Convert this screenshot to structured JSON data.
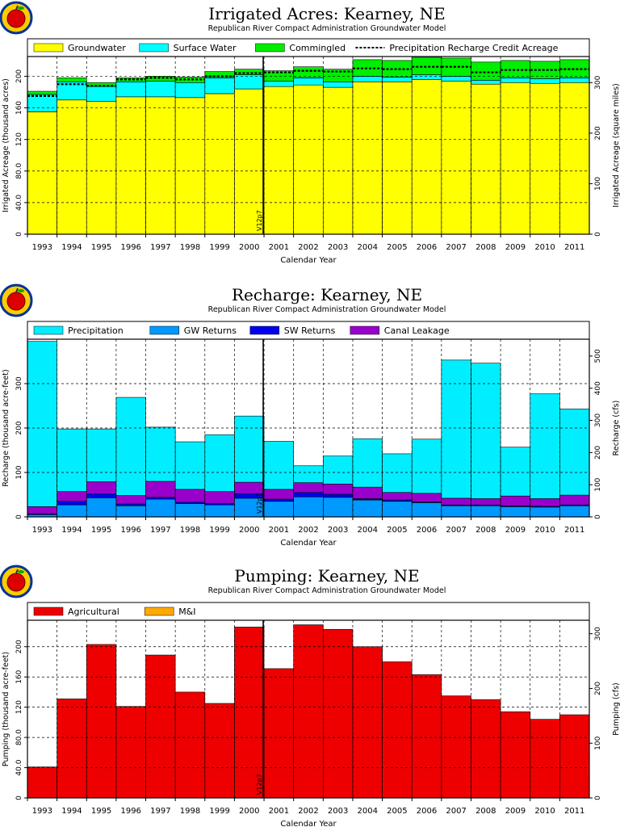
{
  "chart_data": [
    {
      "type": "area",
      "title": "Irrigated Acres: Kearney, NE",
      "subtitle": "Republican River Compact Administration Groundwater Model",
      "xlabel": "Calendar Year",
      "ylabel": "Irrigated Acreage (thousand acres)",
      "ylabel_right": "Irrigated Acreage (square miles)",
      "ylim": [
        0,
        225
      ],
      "yticks": [
        "0",
        "40.0",
        "80.0",
        "120",
        "160",
        "200"
      ],
      "ylim_right": [
        0,
        351.6
      ],
      "yticks_right": [
        "0",
        "100",
        "200",
        "300"
      ],
      "categories": [
        "1993",
        "1994",
        "1995",
        "1996",
        "1997",
        "1998",
        "1999",
        "2000",
        "2001",
        "2002",
        "2003",
        "2004",
        "2005",
        "2006",
        "2007",
        "2008",
        "2009",
        "2010",
        "2011"
      ],
      "marker_label": "V12p7",
      "series": [
        {
          "name": "Groundwater",
          "color": "#ffff00",
          "values": [
            155,
            170,
            168,
            174,
            174,
            173,
            178,
            184,
            187,
            189,
            186,
            193,
            193,
            196,
            194,
            190,
            192,
            191,
            192
          ]
        },
        {
          "name": "Surface Water",
          "color": "#00ffff",
          "values": [
            22,
            23,
            19,
            19,
            20,
            19,
            20,
            18,
            7,
            9,
            7,
            7,
            6,
            6,
            6,
            5,
            6,
            6,
            6
          ]
        },
        {
          "name": "Commingled",
          "color": "#00ee00",
          "values": [
            4,
            5,
            5,
            5,
            6,
            7,
            8,
            7,
            13,
            14,
            16,
            21,
            21,
            22,
            23,
            23,
            22,
            22,
            23
          ]
        }
      ],
      "line": {
        "name": "Precipitation Recharge Credit Acreage",
        "values": [
          175,
          190,
          188,
          196,
          198,
          196,
          200,
          204,
          205,
          207,
          206,
          210,
          209,
          212,
          212,
          205,
          208,
          208,
          209
        ]
      }
    },
    {
      "type": "area",
      "title": "Recharge: Kearney, NE",
      "subtitle": "Republican River Compact Administration Groundwater Model",
      "xlabel": "Calendar Year",
      "ylabel": "Recharge (thousand acre-feet)",
      "ylabel_right": "Recharge (cfs)",
      "ylim": [
        0,
        400
      ],
      "yticks": [
        "0",
        "100",
        "200",
        "300"
      ],
      "ylim_right": [
        0,
        552.5
      ],
      "yticks_right": [
        "0",
        "100",
        "200",
        "300",
        "400",
        "500"
      ],
      "categories": [
        "1993",
        "1994",
        "1995",
        "1996",
        "1997",
        "1998",
        "1999",
        "2000",
        "2001",
        "2002",
        "2003",
        "2004",
        "2005",
        "2006",
        "2007",
        "2008",
        "2009",
        "2010",
        "2011"
      ],
      "marker_label": "V12p7",
      "series": [
        {
          "name": "GW Returns",
          "color": "#0099ff",
          "values": [
            5,
            27,
            43,
            25,
            40,
            30,
            27,
            42,
            35,
            45,
            44,
            38,
            35,
            32,
            25,
            25,
            23,
            22,
            25
          ]
        },
        {
          "name": "SW Returns",
          "color": "#0000ee",
          "values": [
            2,
            8,
            9,
            4,
            4,
            3,
            3,
            10,
            5,
            10,
            7,
            3,
            3,
            2,
            2,
            2,
            2,
            2,
            2
          ]
        },
        {
          "name": "Canal Leakage",
          "color": "#9900cc",
          "values": [
            16,
            22,
            27,
            19,
            36,
            29,
            27,
            26,
            22,
            22,
            23,
            26,
            17,
            19,
            15,
            14,
            22,
            17,
            22
          ]
        },
        {
          "name": "Precipitation",
          "color": "#00eeff",
          "values": [
            372,
            141,
            119,
            221,
            122,
            107,
            128,
            149,
            108,
            38,
            63,
            109,
            87,
            122,
            311,
            305,
            110,
            236,
            194
          ]
        }
      ]
    },
    {
      "type": "bar",
      "title": "Pumping: Kearney, NE",
      "subtitle": "Republican River Compact Administration Groundwater Model",
      "xlabel": "Calendar Year",
      "ylabel": "Pumping (thousand acre-feet)",
      "ylabel_right": "Pumping (cfs)",
      "ylim": [
        0,
        235
      ],
      "yticks": [
        "0",
        "40.0",
        "80.0",
        "120",
        "160",
        "200"
      ],
      "ylim_right": [
        0,
        324.6
      ],
      "yticks_right": [
        "0",
        "100",
        "200",
        "300"
      ],
      "categories": [
        "1993",
        "1994",
        "1995",
        "1996",
        "1997",
        "1998",
        "1999",
        "2000",
        "2001",
        "2002",
        "2003",
        "2004",
        "2005",
        "2006",
        "2007",
        "2008",
        "2009",
        "2010",
        "2011"
      ],
      "marker_label": "V12p7",
      "series": [
        {
          "name": "Agricultural",
          "color": "#ee0000",
          "values": [
            41,
            131,
            203,
            121,
            189,
            140,
            125,
            226,
            171,
            229,
            223,
            200,
            180,
            163,
            135,
            130,
            114,
            104,
            110
          ]
        },
        {
          "name": "M&I",
          "color": "#ffaa00",
          "values": [
            0,
            0,
            0,
            0,
            0,
            0,
            0,
            0,
            0,
            0,
            0,
            0,
            0,
            0,
            0,
            0,
            0,
            0,
            0
          ]
        }
      ]
    }
  ]
}
